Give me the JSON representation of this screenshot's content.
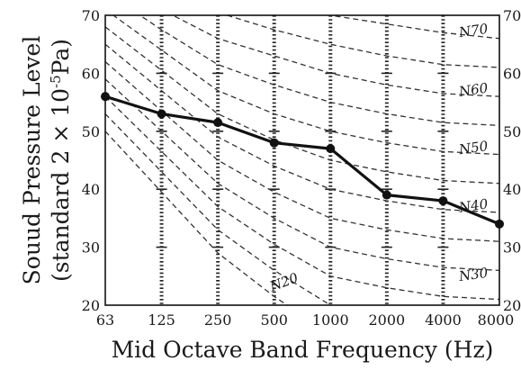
{
  "chart_data": {
    "type": "line",
    "xlabel": "Mid Octave Band Frequency (Hz)",
    "ylabel": {
      "line1": "Souud Pressure Level",
      "line2_prefix": "(standard 2 × 10",
      "line2_sup": "-5",
      "line2_suffix": "Pa)"
    },
    "ylim": [
      20,
      70
    ],
    "yticks": [
      "20",
      "30",
      "40",
      "50",
      "60",
      "70"
    ],
    "categories": [
      "63",
      "125",
      "250",
      "500",
      "1000",
      "2000",
      "4000",
      "8000"
    ],
    "series": [
      {
        "values": [
          56,
          53,
          51.5,
          48,
          47,
          39,
          38,
          34
        ]
      }
    ],
    "nc_curves": [
      {
        "label": "N70",
        "values": [
          83,
          79,
          75,
          72,
          70,
          68.5,
          67,
          66
        ]
      },
      {
        "label": "N60",
        "values": [
          77,
          71,
          66,
          63,
          60,
          58,
          56.5,
          56
        ]
      },
      {
        "label": "N50",
        "values": [
          71,
          64,
          57,
          53,
          50,
          48,
          46.5,
          46
        ]
      },
      {
        "label": "N40",
        "values": [
          65,
          57,
          49,
          44,
          40,
          38,
          36.5,
          36
        ]
      },
      {
        "label": "N30",
        "values": [
          59,
          50,
          41,
          35,
          30,
          28,
          26.5,
          26
        ]
      },
      {
        "label": "N20",
        "values": [
          53,
          43,
          33,
          26,
          20,
          18,
          16.5,
          16
        ]
      },
      {
        "label": "",
        "values": [
          80,
          75,
          70.5,
          67.5,
          65,
          63,
          61.5,
          61
        ]
      },
      {
        "label": "",
        "values": [
          74,
          67.5,
          61.5,
          58,
          55,
          53,
          51.5,
          51
        ]
      },
      {
        "label": "",
        "values": [
          68,
          60.5,
          53,
          48.5,
          45,
          43,
          41.5,
          41
        ]
      },
      {
        "label": "",
        "values": [
          62,
          53.5,
          45,
          39.5,
          35,
          33,
          31.5,
          31
        ]
      },
      {
        "label": "",
        "values": [
          56,
          46.5,
          37,
          30.5,
          25,
          23,
          21.5,
          21
        ]
      },
      {
        "label": "",
        "values": [
          50,
          39.5,
          29,
          21.5,
          15,
          13,
          11.5,
          11
        ]
      }
    ],
    "grid": "dotted vertical lines at each frequency",
    "legend": "none",
    "colors": {
      "data": "#111111",
      "curves": "#333333",
      "axes": "#111111"
    }
  }
}
